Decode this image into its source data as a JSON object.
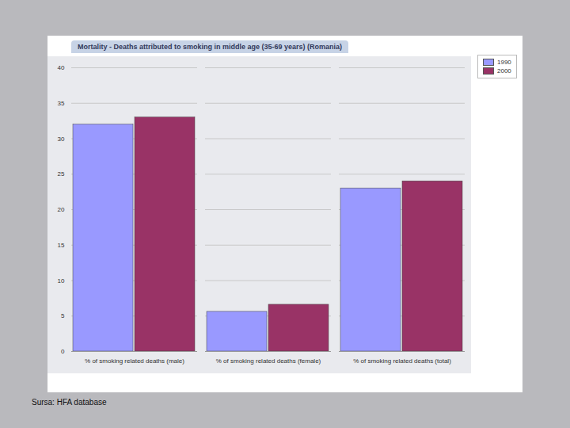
{
  "chart_data": {
    "type": "bar",
    "title": "Mortality - Deaths attributed to smoking in middle age (35-69 years) (Romania)",
    "caption": "Sursa: HFA database",
    "categories": [
      "% of smoking related deaths (male)",
      "% of smoking related deaths (female)",
      "% of smoking related deaths (total)"
    ],
    "series": [
      {
        "name": "1990",
        "color": "#9999ff",
        "values": [
          32,
          5.6,
          23
        ]
      },
      {
        "name": "2000",
        "color": "#993366",
        "values": [
          33,
          6.6,
          24
        ]
      }
    ],
    "ylim": [
      0,
      40
    ],
    "yticks": [
      0,
      5,
      10,
      15,
      20,
      25,
      30,
      35,
      40
    ],
    "grid": true,
    "legend": "top-right"
  }
}
